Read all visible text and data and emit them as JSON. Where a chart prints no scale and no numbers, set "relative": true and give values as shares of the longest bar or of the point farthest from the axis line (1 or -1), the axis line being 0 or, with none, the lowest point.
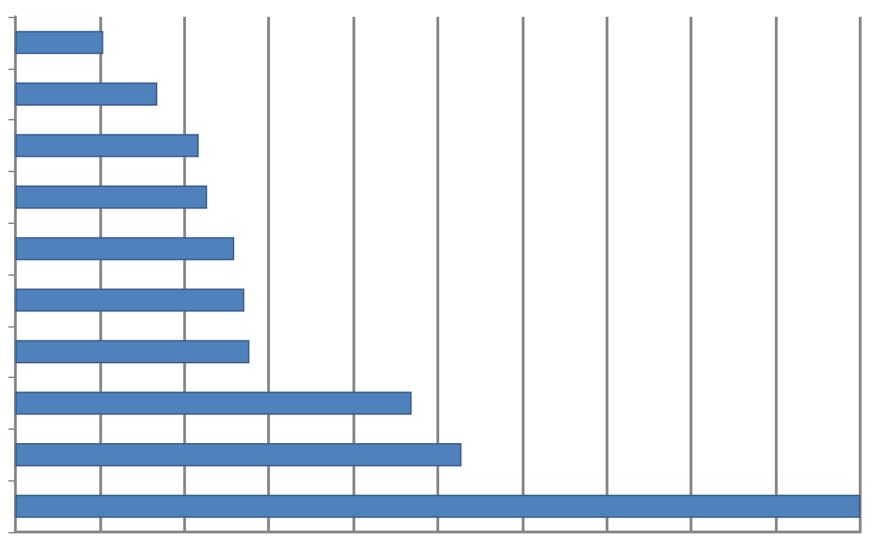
{
  "chart_data": {
    "type": "bar",
    "orientation": "horizontal",
    "relative": true,
    "grid": "x",
    "categories": [
      null,
      null,
      null,
      null,
      null,
      null,
      null,
      null,
      null,
      null
    ],
    "values": [
      0.104,
      0.168,
      0.217,
      0.227,
      0.259,
      0.271,
      0.277,
      0.469,
      0.528,
      1
    ],
    "color": "#4f81bd"
  }
}
